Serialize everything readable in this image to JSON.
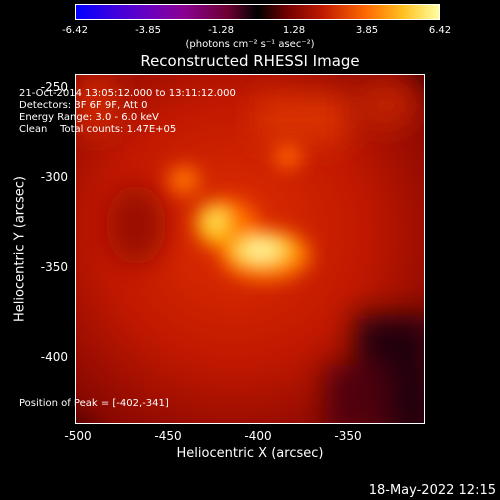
{
  "colorbar": {
    "ticks": [
      "-6.42",
      "-3.85",
      "-1.28",
      "1.28",
      "3.85",
      "6.42"
    ],
    "unit": "(photons cm⁻² s⁻¹ asec⁻²)"
  },
  "title": "Reconstructed RHESSI Image",
  "info": {
    "line1": "21-Oct-2014 13:05:12.000 to 13:11:12.000",
    "line2": "Detectors: 3F 6F 9F, Att 0",
    "line3": "Energy Range: 3.0 - 6.0 keV",
    "line4": "Clean    Total counts: 1.47E+05",
    "peak": "Position of Peak = [-402,-341]"
  },
  "axes": {
    "xlabel": "Heliocentric X (arcsec)",
    "ylabel": "Heliocentric Y (arcsec)",
    "xticks": [
      "-500",
      "-450",
      "-400",
      "-350"
    ],
    "yticks": [
      "-250",
      "-300",
      "-350",
      "-400"
    ]
  },
  "timestamp": "18-May-2022 12:15"
}
